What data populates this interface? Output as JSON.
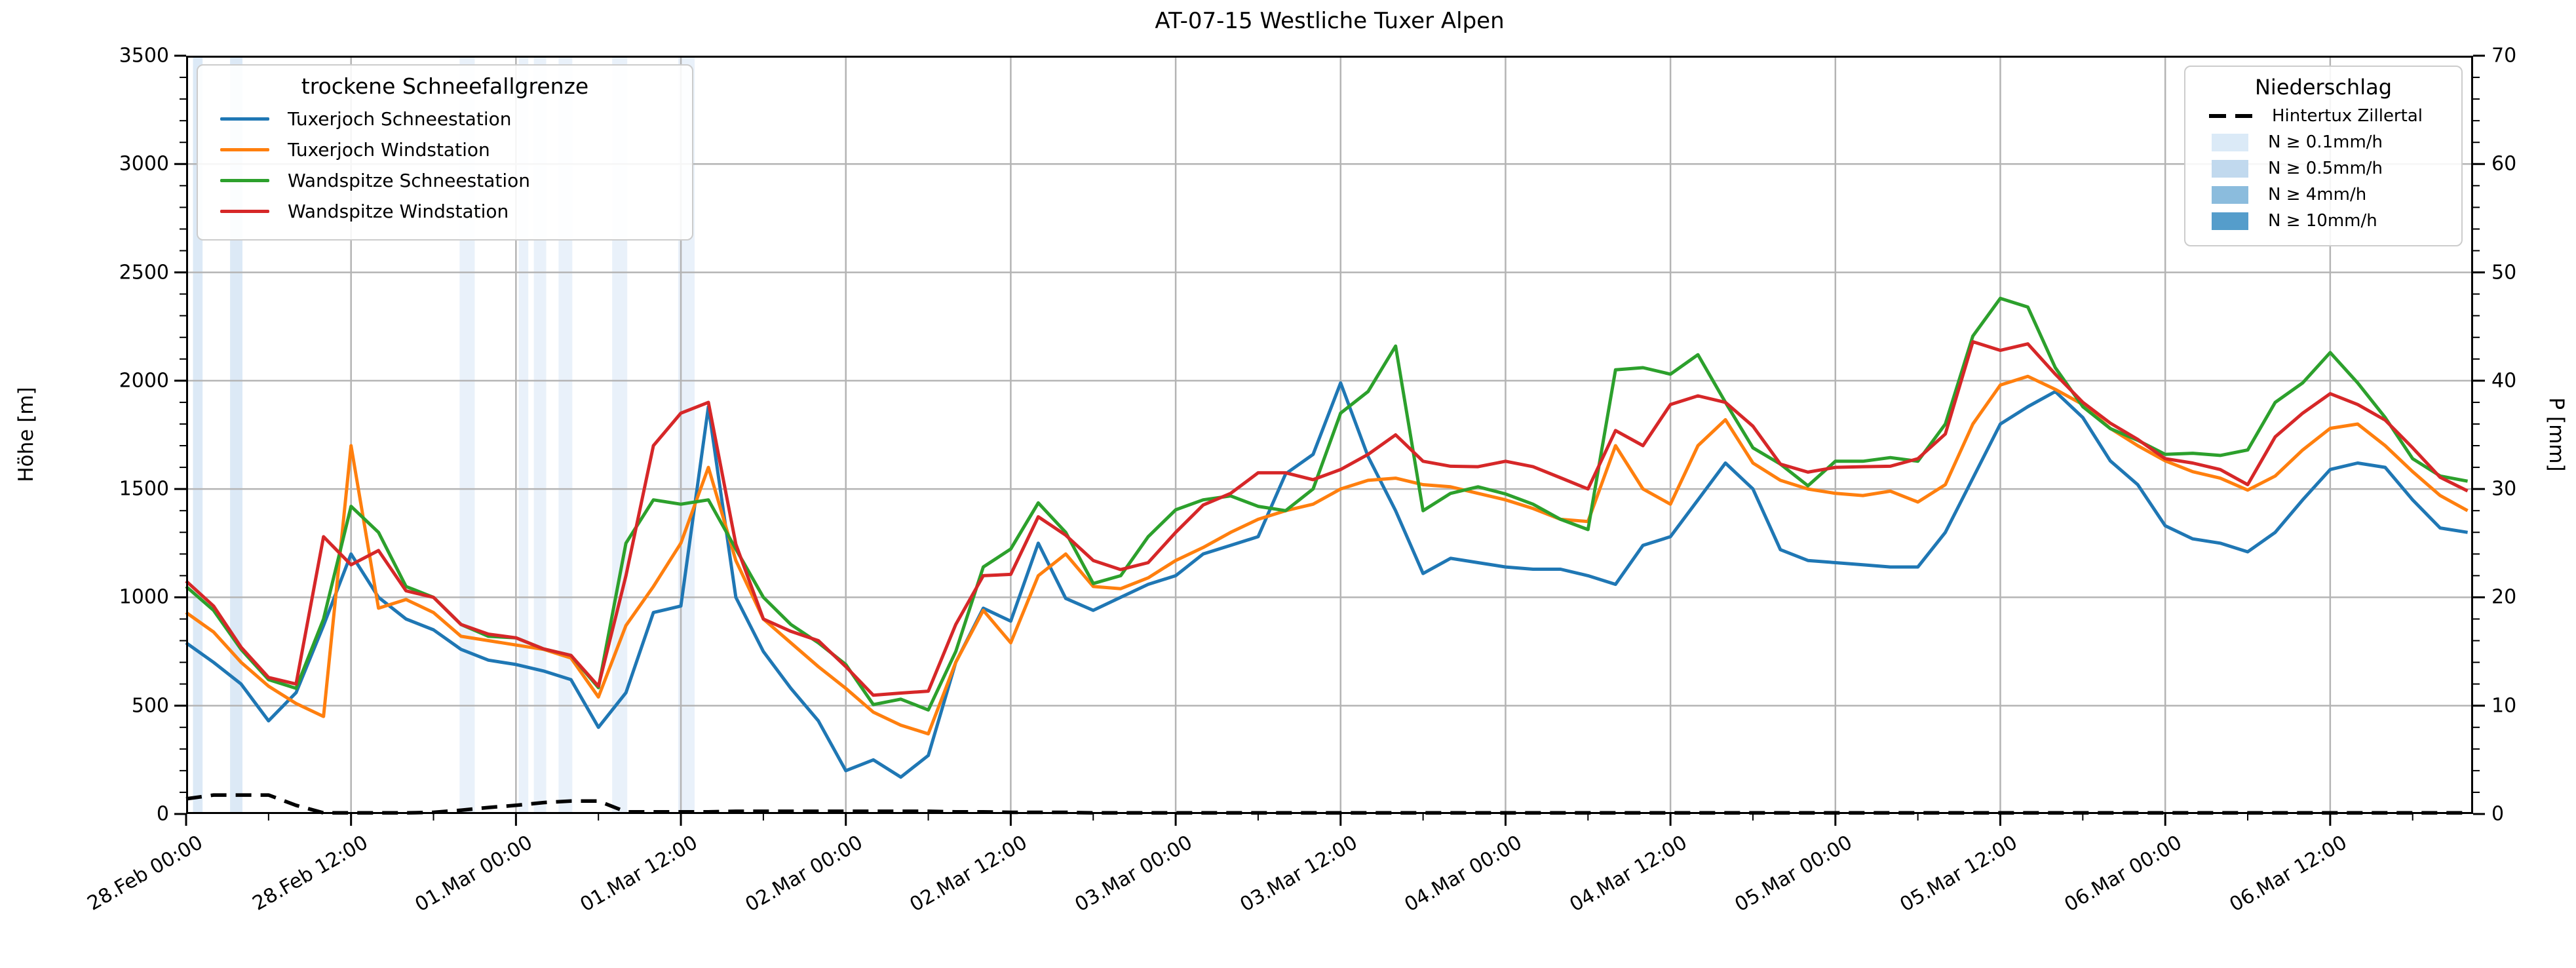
{
  "title": "AT-07-15 Westliche Tuxer Alpen",
  "axes": {
    "y_left": {
      "label": "Höhe [m]",
      "min": 0,
      "max": 3500,
      "major_ticks": [
        0,
        500,
        1000,
        1500,
        2000,
        2500,
        3000,
        3500
      ],
      "minor_step": 100
    },
    "y_right": {
      "label": "P [mm]",
      "min": 0,
      "max": 70,
      "major_ticks": [
        0,
        10,
        20,
        30,
        40,
        50,
        60,
        70
      ],
      "minor_step": 2
    },
    "x": {
      "min_hours": 0,
      "max_hours": 166.4,
      "major_tick_hours": [
        0,
        12,
        24,
        36,
        48,
        60,
        72,
        84,
        96,
        108,
        120,
        132,
        144,
        156
      ],
      "tick_labels": [
        "28.Feb 00:00",
        "28.Feb 12:00",
        "01.Mar 00:00",
        "01.Mar 12:00",
        "02.Mar 00:00",
        "02.Mar 12:00",
        "03.Mar 00:00",
        "03.Mar 12:00",
        "04.Mar 00:00",
        "04.Mar 12:00",
        "05.Mar 00:00",
        "05.Mar 12:00",
        "06.Mar 00:00",
        "06.Mar 12:00"
      ],
      "minor_step_hours": 6,
      "gridline_every_hours": 12
    }
  },
  "legend_left": {
    "title": "trockene Schneefallgrenze",
    "items": [
      {
        "label": "Tuxerjoch Schneestation",
        "color": "#1f77b4"
      },
      {
        "label": "Tuxerjoch Windstation",
        "color": "#ff7f0e"
      },
      {
        "label": "Wandspitze Schneestation",
        "color": "#2ca02c"
      },
      {
        "label": "Wandspitze Windstation",
        "color": "#d62728"
      }
    ]
  },
  "legend_right": {
    "title": "Niederschlag",
    "line_item": {
      "label": "Hintertux Zillertal",
      "color": "#000000",
      "style": "dashed"
    },
    "patch_items": [
      {
        "label": "N ≥ 0.1mm/h",
        "color": "#dbeaf7"
      },
      {
        "label": "N ≥ 0.5mm/h",
        "color": "#c1d9ee"
      },
      {
        "label": "N ≥ 4mm/h",
        "color": "#8bbcdd"
      },
      {
        "label": "N ≥ 10mm/h",
        "color": "#559dcb"
      }
    ]
  },
  "colors": {
    "grid": "#b4b4b4",
    "spine": "#000000",
    "band_levels": {
      "0.1": "#e9f1fa",
      "0.5": "#dce9f6",
      "4": "#8bbcdd",
      "10": "#559dcb"
    }
  },
  "chart_data": {
    "type": "line",
    "title": "AT-07-15 Westliche Tuxer Alpen",
    "xlabel": "",
    "ylabel_left": "Höhe [m]",
    "ylabel_right": "P [mm]",
    "ylim_left": [
      0,
      3500
    ],
    "ylim_right": [
      0,
      70
    ],
    "x_is_time": true,
    "x_start": "28.Feb 00:00",
    "x_end_hours": 166.4,
    "grid": "on",
    "legend_position": [
      "upper left",
      "upper right"
    ],
    "x_hours": [
      0,
      2,
      4,
      6,
      8,
      10,
      12,
      14,
      16,
      18,
      20,
      22,
      24,
      26,
      28,
      30,
      32,
      34,
      36,
      38,
      40,
      42,
      44,
      46,
      48,
      50,
      52,
      54,
      56,
      58,
      60,
      62,
      64,
      66,
      68,
      70,
      72,
      74,
      76,
      78,
      80,
      82,
      84,
      86,
      88,
      90,
      92,
      94,
      96,
      98,
      100,
      102,
      104,
      106,
      108,
      110,
      112,
      114,
      116,
      118,
      120,
      122,
      124,
      126,
      128,
      130,
      132,
      134,
      136,
      138,
      140,
      142,
      144,
      146,
      148,
      150,
      152,
      154,
      156,
      158,
      160,
      162,
      164,
      166
    ],
    "series": [
      {
        "name": "Tuxerjoch Schneestation",
        "axis": "left",
        "color": "#1f77b4",
        "style": "solid",
        "values": [
          790,
          700,
          600,
          430,
          560,
          870,
          1200,
          1000,
          900,
          850,
          760,
          710,
          690,
          660,
          620,
          400,
          560,
          930,
          960,
          1880,
          1000,
          750,
          580,
          430,
          200,
          250,
          170,
          270,
          700,
          950,
          890,
          1250,
          995,
          940,
          1000,
          1060,
          1100,
          1200,
          1240,
          1280,
          1570,
          1660,
          1990,
          1650,
          1400,
          1110,
          1180,
          1160,
          1140,
          1130,
          1130,
          1100,
          1060,
          1240,
          1280,
          1450,
          1620,
          1500,
          1220,
          1170,
          1160,
          1150,
          1140,
          1140,
          1300,
          1550,
          1800,
          1880,
          1950,
          1830,
          1630,
          1520,
          1330,
          1270,
          1250,
          1210,
          1300,
          1450,
          1590,
          1620,
          1600,
          1450,
          1320,
          1300
        ]
      },
      {
        "name": "Tuxerjoch Windstation",
        "axis": "left",
        "color": "#ff7f0e",
        "style": "solid",
        "values": [
          930,
          840,
          700,
          590,
          510,
          450,
          1700,
          950,
          990,
          930,
          820,
          800,
          780,
          760,
          720,
          540,
          870,
          1050,
          1250,
          1600,
          1170,
          900,
          790,
          680,
          580,
          470,
          410,
          370,
          700,
          940,
          790,
          1100,
          1200,
          1050,
          1040,
          1090,
          1170,
          1230,
          1300,
          1360,
          1400,
          1430,
          1500,
          1540,
          1550,
          1520,
          1510,
          1480,
          1450,
          1410,
          1360,
          1350,
          1700,
          1500,
          1430,
          1700,
          1820,
          1620,
          1540,
          1500,
          1480,
          1470,
          1490,
          1440,
          1520,
          1800,
          1980,
          2020,
          1960,
          1890,
          1780,
          1700,
          1630,
          1580,
          1550,
          1495,
          1560,
          1680,
          1780,
          1800,
          1700,
          1580,
          1470,
          1400
        ]
      },
      {
        "name": "Wandspitze Schneestation",
        "axis": "left",
        "color": "#2ca02c",
        "style": "solid",
        "values": [
          1050,
          940,
          760,
          620,
          580,
          900,
          1420,
          1300,
          1050,
          1000,
          875,
          820,
          813,
          762,
          732,
          583,
          1250,
          1450,
          1430,
          1450,
          1223,
          1000,
          875,
          790,
          690,
          505,
          530,
          480,
          750,
          1140,
          1223,
          1436,
          1300,
          1064,
          1100,
          1280,
          1404,
          1450,
          1468,
          1420,
          1400,
          1500,
          1850,
          1950,
          2160,
          1400,
          1480,
          1510,
          1477,
          1430,
          1360,
          1313,
          2050,
          2060,
          2030,
          2120,
          1900,
          1690,
          1615,
          1515,
          1628,
          1628,
          1645,
          1628,
          1800,
          2206,
          2380,
          2340,
          2060,
          1880,
          1779,
          1725,
          1660,
          1665,
          1655,
          1680,
          1900,
          1990,
          2130,
          1990,
          1830,
          1640,
          1560,
          1536
        ]
      },
      {
        "name": "Wandspitze Windstation",
        "axis": "left",
        "color": "#d62728",
        "style": "solid",
        "values": [
          1075,
          960,
          770,
          630,
          600,
          1280,
          1150,
          1216,
          1030,
          1000,
          875,
          830,
          813,
          762,
          732,
          590,
          1100,
          1700,
          1850,
          1900,
          1245,
          900,
          843,
          800,
          680,
          548,
          558,
          567,
          875,
          1100,
          1106,
          1372,
          1287,
          1170,
          1128,
          1160,
          1300,
          1426,
          1480,
          1575,
          1575,
          1543,
          1590,
          1660,
          1750,
          1628,
          1605,
          1603,
          1628,
          1603,
          1552,
          1500,
          1770,
          1700,
          1890,
          1930,
          1900,
          1790,
          1615,
          1578,
          1600,
          1603,
          1605,
          1640,
          1754,
          2180,
          2140,
          2170,
          2030,
          1900,
          1804,
          1729,
          1640,
          1620,
          1590,
          1520,
          1741,
          1850,
          1940,
          1890,
          1818,
          1690,
          1554,
          1491
        ]
      },
      {
        "name": "Hintertux Zillertal",
        "axis": "right",
        "color": "#000000",
        "style": "dashed",
        "values": [
          1.4,
          1.75,
          1.75,
          1.75,
          0.8,
          0.1,
          0.1,
          0.1,
          0.1,
          0.15,
          0.35,
          0.6,
          0.8,
          1.05,
          1.2,
          1.2,
          0.2,
          0.2,
          0.2,
          0.2,
          0.25,
          0.25,
          0.25,
          0.25,
          0.25,
          0.25,
          0.25,
          0.25,
          0.2,
          0.2,
          0.15,
          0.15,
          0.15,
          0.1,
          0.1,
          0.1,
          0.1,
          0.1,
          0.1,
          0.1,
          0.1,
          0.1,
          0.1,
          0.1,
          0.1,
          0.1,
          0.1,
          0.1,
          0.1,
          0.1,
          0.1,
          0.1,
          0.1,
          0.1,
          0.1,
          0.1,
          0.1,
          0.1,
          0.1,
          0.1,
          0.1,
          0.1,
          0.1,
          0.1,
          0.1,
          0.1,
          0.1,
          0.1,
          0.1,
          0.1,
          0.1,
          0.1,
          0.1,
          0.1,
          0.1,
          0.1,
          0.1,
          0.1,
          0.1,
          0.1,
          0.1,
          0.1,
          0.1,
          0.1
        ]
      }
    ],
    "precip_bands": [
      {
        "start_hour": 0.5,
        "end_hour": 1.2,
        "level": "0.5"
      },
      {
        "start_hour": 3.2,
        "end_hour": 4.1,
        "level": "0.5"
      },
      {
        "start_hour": 19.9,
        "end_hour": 21.0,
        "level": "0.1"
      },
      {
        "start_hour": 24.2,
        "end_hour": 24.9,
        "level": "0.1"
      },
      {
        "start_hour": 25.3,
        "end_hour": 26.2,
        "level": "0.1"
      },
      {
        "start_hour": 27.1,
        "end_hour": 28.1,
        "level": "0.1"
      },
      {
        "start_hour": 31.0,
        "end_hour": 32.1,
        "level": "0.1"
      },
      {
        "start_hour": 35.8,
        "end_hour": 37.0,
        "level": "0.1"
      }
    ]
  }
}
